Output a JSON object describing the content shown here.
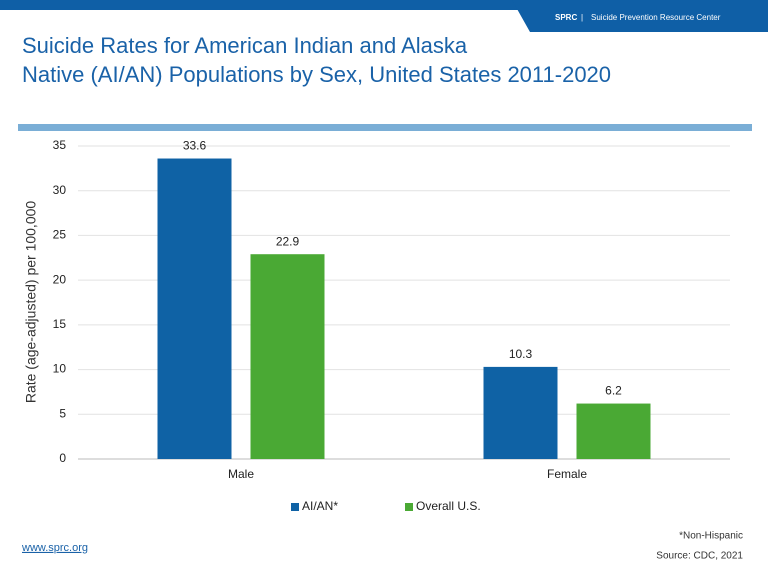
{
  "header": {
    "org_abbr": "SPRC",
    "separator": "|",
    "org_name": "Suicide Prevention Resource Center"
  },
  "slide": {
    "title_lines": [
      "Suicide Rates for American Indian and Alaska",
      "Native (AI/AN) Populations by Sex, United States 2011-2020"
    ]
  },
  "chart_data": {
    "type": "bar",
    "y_label": "Rate (age-adjusted) per 100,000",
    "categories": [
      "Male",
      "Female"
    ],
    "series": [
      {
        "name": "AI/AN*",
        "color": "#0f62a5",
        "values": [
          33.6,
          10.3
        ]
      },
      {
        "name": "Overall U.S.",
        "color": "#4aa934",
        "values": [
          22.9,
          6.2
        ]
      }
    ],
    "ylim": [
      0,
      35
    ],
    "yticks": [
      0,
      5,
      10,
      15,
      20,
      25,
      30,
      35
    ],
    "grid": true,
    "legend": "bottom"
  },
  "footer": {
    "url": "www.sprc.org",
    "note": "*Non-Hispanic",
    "source": "Source: CDC, 2021"
  }
}
